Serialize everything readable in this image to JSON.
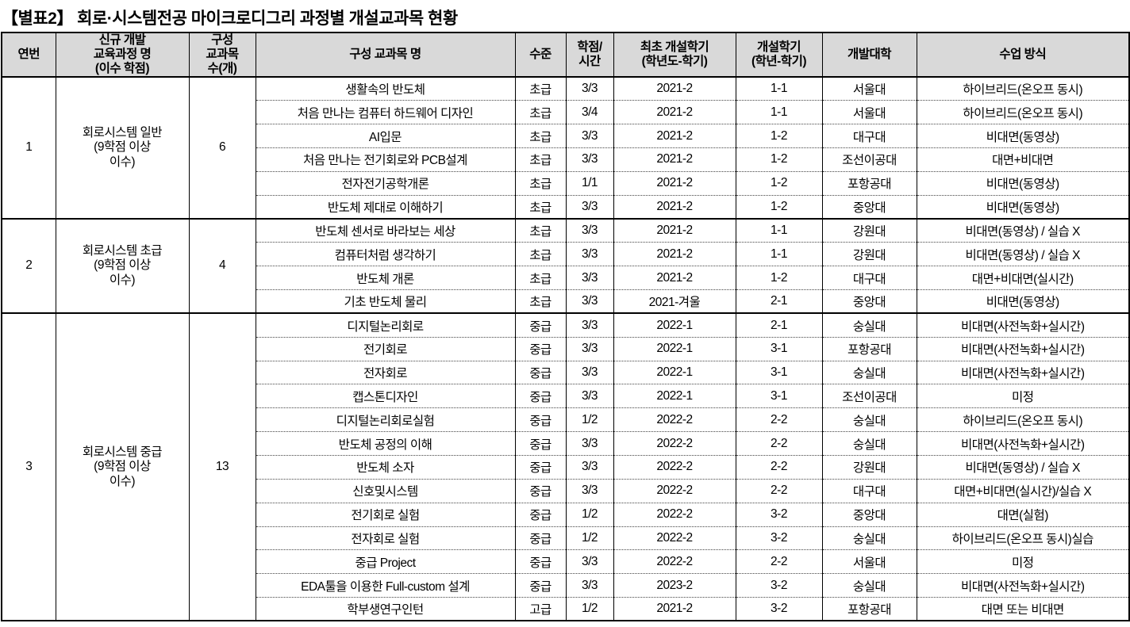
{
  "title": "【별표2】 회로·시스템전공 마이크로디그리 과정별 개설교과목 현황",
  "colors": {
    "header_bg": "#d9d9d9",
    "border": "#000000",
    "text": "#000000"
  },
  "table": {
    "headers": [
      "연번",
      "신규 개발\n교육과정 명\n(이수 학점)",
      "구성\n교과목\n수(개)",
      "구성 교과목 명",
      "수준",
      "학점/\n시간",
      "최초 개설학기\n(학년도-학기)",
      "개설학기\n(학년-학기)",
      "개발대학",
      "수업 방식"
    ],
    "groups": [
      {
        "no": "1",
        "program": "회로시스템 일반\n(9학점 이상\n이수)",
        "count": "6",
        "courses": [
          {
            "name": "생활속의 반도체",
            "level": "초급",
            "credit": "3/3",
            "first_semester": "2021-2",
            "open_semester": "1-1",
            "university": "서울대",
            "method": "하이브리드(온오프 동시)"
          },
          {
            "name": "처음 만나는 컴퓨터 하드웨어 디자인",
            "level": "초급",
            "credit": "3/4",
            "first_semester": "2021-2",
            "open_semester": "1-1",
            "university": "서울대",
            "method": "하이브리드(온오프 동시)"
          },
          {
            "name": "AI입문",
            "level": "초급",
            "credit": "3/3",
            "first_semester": "2021-2",
            "open_semester": "1-2",
            "university": "대구대",
            "method": "비대면(동영상)"
          },
          {
            "name": "처음 만나는 전기회로와 PCB설계",
            "level": "초급",
            "credit": "3/3",
            "first_semester": "2021-2",
            "open_semester": "1-2",
            "university": "조선이공대",
            "method": "대면+비대면"
          },
          {
            "name": "전자전기공학개론",
            "level": "초급",
            "credit": "1/1",
            "first_semester": "2021-2",
            "open_semester": "1-2",
            "university": "포항공대",
            "method": "비대면(동영상)"
          },
          {
            "name": "반도체 제대로 이해하기",
            "level": "초급",
            "credit": "3/3",
            "first_semester": "2021-2",
            "open_semester": "1-2",
            "university": "중앙대",
            "method": "비대면(동영상)"
          }
        ]
      },
      {
        "no": "2",
        "program": "회로시스템 초급\n(9학점 이상\n이수)",
        "count": "4",
        "courses": [
          {
            "name": "반도체 센서로 바라보는 세상",
            "level": "초급",
            "credit": "3/3",
            "first_semester": "2021-2",
            "open_semester": "1-1",
            "university": "강원대",
            "method": "비대면(동영상) / 실습 X"
          },
          {
            "name": "컴퓨터처럼 생각하기",
            "level": "초급",
            "credit": "3/3",
            "first_semester": "2021-2",
            "open_semester": "1-1",
            "university": "강원대",
            "method": "비대면(동영상) / 실습 X"
          },
          {
            "name": "반도체 개론",
            "level": "초급",
            "credit": "3/3",
            "first_semester": "2021-2",
            "open_semester": "1-2",
            "university": "대구대",
            "method": "대면+비대면(실시간)"
          },
          {
            "name": "기초 반도체 물리",
            "level": "초급",
            "credit": "3/3",
            "first_semester": "2021-겨울",
            "open_semester": "2-1",
            "university": "중앙대",
            "method": "비대면(동영상)"
          }
        ]
      },
      {
        "no": "3",
        "program": "회로시스템 중급\n(9학점 이상\n이수)",
        "count": "13",
        "courses": [
          {
            "name": "디지털논리회로",
            "level": "중급",
            "credit": "3/3",
            "first_semester": "2022-1",
            "open_semester": "2-1",
            "university": "숭실대",
            "method": "비대면(사전녹화+실시간)"
          },
          {
            "name": "전기회로",
            "level": "중급",
            "credit": "3/3",
            "first_semester": "2022-1",
            "open_semester": "3-1",
            "university": "포항공대",
            "method": "비대면(사전녹화+실시간)"
          },
          {
            "name": "전자회로",
            "level": "중급",
            "credit": "3/3",
            "first_semester": "2022-1",
            "open_semester": "3-1",
            "university": "숭실대",
            "method": "비대면(사전녹화+실시간)"
          },
          {
            "name": "캡스톤디자인",
            "level": "중급",
            "credit": "3/3",
            "first_semester": "2022-1",
            "open_semester": "3-1",
            "university": "조선이공대",
            "method": "미정"
          },
          {
            "name": "디지털논리회로실험",
            "level": "중급",
            "credit": "1/2",
            "first_semester": "2022-2",
            "open_semester": "2-2",
            "university": "숭실대",
            "method": "하이브리드(온오프 동시)"
          },
          {
            "name": "반도체 공정의 이해",
            "level": "중급",
            "credit": "3/3",
            "first_semester": "2022-2",
            "open_semester": "2-2",
            "university": "숭실대",
            "method": "비대면(사전녹화+실시간)"
          },
          {
            "name": "반도체 소자",
            "level": "중급",
            "credit": "3/3",
            "first_semester": "2022-2",
            "open_semester": "2-2",
            "university": "강원대",
            "method": "비대면(동영상) / 실습 X"
          },
          {
            "name": "신호및시스템",
            "level": "중급",
            "credit": "3/3",
            "first_semester": "2022-2",
            "open_semester": "2-2",
            "university": "대구대",
            "method": "대면+비대면(실시간)/실습 X"
          },
          {
            "name": "전기회로 실험",
            "level": "중급",
            "credit": "1/2",
            "first_semester": "2022-2",
            "open_semester": "3-2",
            "university": "중앙대",
            "method": "대면(실험)"
          },
          {
            "name": "전자회로 실험",
            "level": "중급",
            "credit": "1/2",
            "first_semester": "2022-2",
            "open_semester": "3-2",
            "university": "숭실대",
            "method": "하이브리드(온오프 동시)실습"
          },
          {
            "name": "중급 Project",
            "level": "중급",
            "credit": "3/3",
            "first_semester": "2022-2",
            "open_semester": "2-2",
            "university": "서울대",
            "method": "미정"
          },
          {
            "name": "EDA툴을 이용한 Full-custom 설계",
            "level": "중급",
            "credit": "3/3",
            "first_semester": "2023-2",
            "open_semester": "3-2",
            "university": "숭실대",
            "method": "비대면(사전녹화+실시간)"
          },
          {
            "name": "학부생연구인턴",
            "level": "고급",
            "credit": "1/2",
            "first_semester": "2021-2",
            "open_semester": "3-2",
            "university": "포항공대",
            "method": "대면 또는 비대면"
          }
        ]
      }
    ]
  }
}
